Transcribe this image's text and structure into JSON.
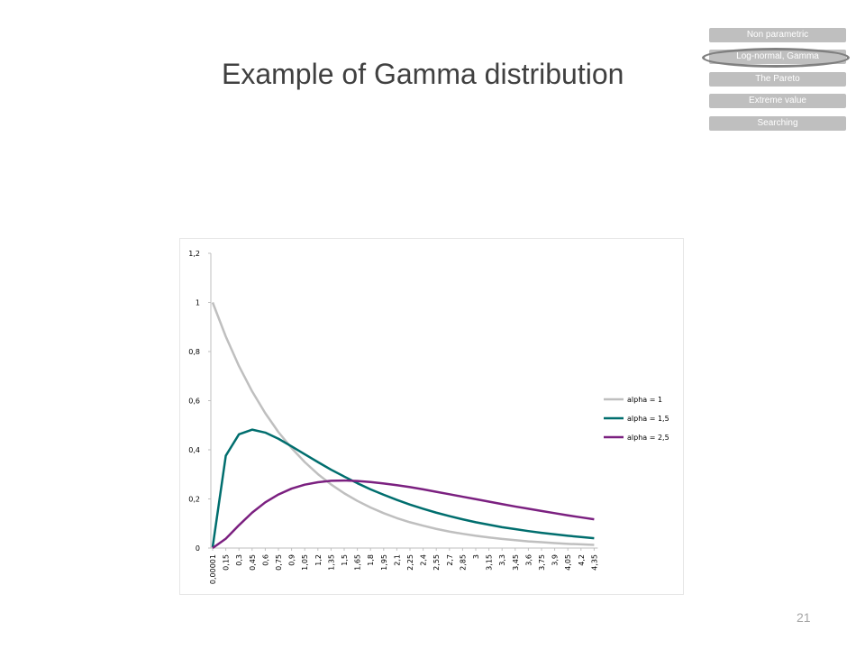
{
  "slide": {
    "title": "Example of Gamma distribution",
    "page_number": "21"
  },
  "nav": {
    "items": [
      {
        "label": "Non parametric",
        "active": false
      },
      {
        "label": "Log-normal, Gamma",
        "active": true
      },
      {
        "label": "The Pareto",
        "active": false
      },
      {
        "label": "Extreme value",
        "active": false
      },
      {
        "label": "Searching",
        "active": false
      }
    ],
    "color": "#bfbfbf",
    "ring_color": "#808080"
  },
  "chart_data": {
    "type": "line",
    "title": "",
    "xlabel": "",
    "ylabel": "",
    "ylim": [
      0,
      1.2
    ],
    "y_ticks": [
      "0",
      "0,2",
      "0,4",
      "0,6",
      "0,8",
      "1",
      "1,2"
    ],
    "x_ticks": [
      "0,00001",
      "0,15",
      "0,3",
      "0,45",
      "0,6",
      "0,75",
      "0,9",
      "1,05",
      "1,2",
      "1,35",
      "1,5",
      "1,65",
      "1,8",
      "1,95",
      "2,1",
      "2,25",
      "2,4",
      "2,55",
      "2,7",
      "2,85",
      "3",
      "3,15",
      "3,3",
      "3,45",
      "3,6",
      "3,75",
      "3,9",
      "4,05",
      "4,2",
      "4,35"
    ],
    "x": [
      1e-05,
      0.15,
      0.3,
      0.45,
      0.6,
      0.75,
      0.9,
      1.05,
      1.2,
      1.35,
      1.5,
      1.65,
      1.8,
      1.95,
      2.1,
      2.25,
      2.4,
      2.55,
      2.7,
      2.85,
      3,
      3.15,
      3.3,
      3.45,
      3.6,
      3.75,
      3.9,
      4.05,
      4.2,
      4.35
    ],
    "grid": false,
    "legend_position": "right",
    "series": [
      {
        "name": "alpha = 1",
        "color": "#bfbfbf",
        "values": [
          1.0,
          0.861,
          0.741,
          0.638,
          0.549,
          0.472,
          0.407,
          0.35,
          0.301,
          0.259,
          0.223,
          0.192,
          0.165,
          0.142,
          0.122,
          0.105,
          0.091,
          0.078,
          0.067,
          0.058,
          0.05,
          0.043,
          0.037,
          0.032,
          0.027,
          0.024,
          0.02,
          0.017,
          0.015,
          0.013
        ]
      },
      {
        "name": "alpha = 1,5",
        "color": "#006e6e",
        "values": [
          0.004,
          0.376,
          0.463,
          0.482,
          0.47,
          0.445,
          0.414,
          0.382,
          0.35,
          0.319,
          0.291,
          0.264,
          0.239,
          0.217,
          0.196,
          0.177,
          0.16,
          0.144,
          0.13,
          0.117,
          0.105,
          0.095,
          0.085,
          0.077,
          0.069,
          0.062,
          0.056,
          0.05,
          0.045,
          0.04
        ]
      },
      {
        "name": "alpha = 2,5",
        "color": "#7b2080",
        "values": [
          0.0,
          0.038,
          0.093,
          0.144,
          0.186,
          0.218,
          0.242,
          0.258,
          0.268,
          0.274,
          0.275,
          0.273,
          0.269,
          0.263,
          0.256,
          0.248,
          0.239,
          0.229,
          0.219,
          0.209,
          0.199,
          0.189,
          0.179,
          0.169,
          0.16,
          0.151,
          0.142,
          0.133,
          0.125,
          0.117
        ]
      }
    ]
  }
}
